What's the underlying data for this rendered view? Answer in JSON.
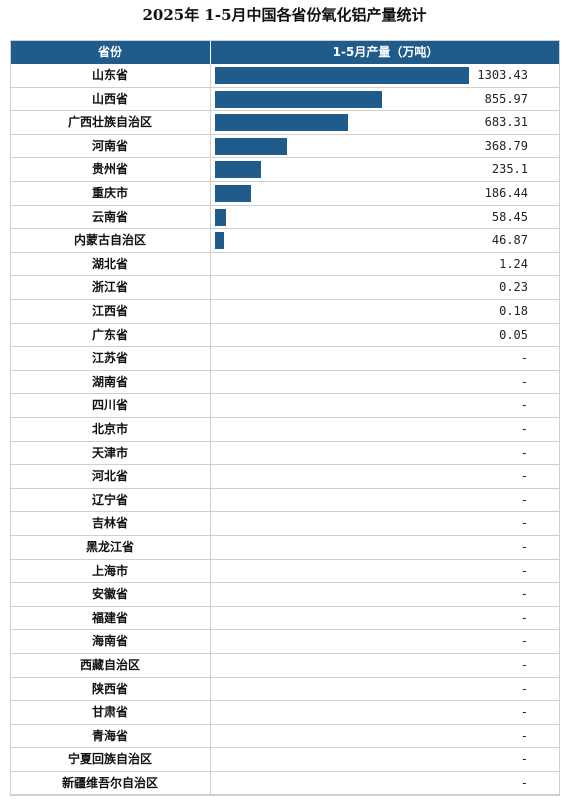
{
  "title": "2025年 1-5月中国各省份氧化铝产量统计",
  "header": {
    "col_province": "省份",
    "col_value": "1-5月产量（万吨）"
  },
  "colors": {
    "bar": "#1f5c8b",
    "header_bg": "#1f5c8b"
  },
  "chart_data": {
    "type": "table",
    "title": "2025年 1-5月中国各省份氧化铝产量统计",
    "columns": [
      "省份",
      "1-5月产量（万吨）"
    ],
    "bar_max": 1303.43,
    "rows": [
      {
        "province": "山东省",
        "value": 1303.43,
        "display": "1303.43"
      },
      {
        "province": "山西省",
        "value": 855.97,
        "display": "855.97"
      },
      {
        "province": "广西壮族自治区",
        "value": 683.31,
        "display": "683.31"
      },
      {
        "province": "河南省",
        "value": 368.79,
        "display": "368.79"
      },
      {
        "province": "贵州省",
        "value": 235.1,
        "display": "235.1"
      },
      {
        "province": "重庆市",
        "value": 186.44,
        "display": "186.44"
      },
      {
        "province": "云南省",
        "value": 58.45,
        "display": "58.45"
      },
      {
        "province": "内蒙古自治区",
        "value": 46.87,
        "display": "46.87"
      },
      {
        "province": "湖北省",
        "value": 1.24,
        "display": "1.24"
      },
      {
        "province": "浙江省",
        "value": 0.23,
        "display": "0.23"
      },
      {
        "province": "江西省",
        "value": 0.18,
        "display": "0.18"
      },
      {
        "province": "广东省",
        "value": 0.05,
        "display": "0.05"
      },
      {
        "province": "江苏省",
        "value": null,
        "display": "-"
      },
      {
        "province": "湖南省",
        "value": null,
        "display": "-"
      },
      {
        "province": "四川省",
        "value": null,
        "display": "-"
      },
      {
        "province": "北京市",
        "value": null,
        "display": "-"
      },
      {
        "province": "天津市",
        "value": null,
        "display": "-"
      },
      {
        "province": "河北省",
        "value": null,
        "display": "-"
      },
      {
        "province": "辽宁省",
        "value": null,
        "display": "-"
      },
      {
        "province": "吉林省",
        "value": null,
        "display": "-"
      },
      {
        "province": "黑龙江省",
        "value": null,
        "display": "-"
      },
      {
        "province": "上海市",
        "value": null,
        "display": "-"
      },
      {
        "province": "安徽省",
        "value": null,
        "display": "-"
      },
      {
        "province": "福建省",
        "value": null,
        "display": "-"
      },
      {
        "province": "海南省",
        "value": null,
        "display": "-"
      },
      {
        "province": "西藏自治区",
        "value": null,
        "display": "-"
      },
      {
        "province": "陕西省",
        "value": null,
        "display": "-"
      },
      {
        "province": "甘肃省",
        "value": null,
        "display": "-"
      },
      {
        "province": "青海省",
        "value": null,
        "display": "-"
      },
      {
        "province": "宁夏回族自治区",
        "value": null,
        "display": "-"
      },
      {
        "province": "新疆维吾尔自治区",
        "value": null,
        "display": "-"
      }
    ]
  }
}
